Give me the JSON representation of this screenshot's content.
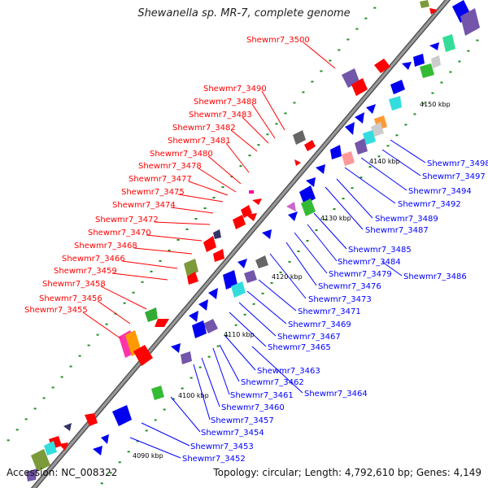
{
  "title": "Shewanella sp. MR-7, complete genome",
  "footer": {
    "accession": "Accession: NC_008322",
    "summary": "Topology: circular; Length: 4,792,610 bp; Genes: 4,149"
  },
  "colors": {
    "forward_label": "#ff0000",
    "reverse_label": "#0000ff",
    "backbone": "#8c8c8c"
  },
  "kbp_labels": [
    "4090 kbp",
    "4100 kbp",
    "4110 kbp",
    "4120 kbp",
    "4130 kbp",
    "4140 kbp",
    "4150 kbp"
  ],
  "forward_labels": [
    "Shewmr7_3500",
    "Shewmr7_3490",
    "Shewmr7_3488",
    "Shewmr7_3483",
    "Shewmr7_3482",
    "Shewmr7_3481",
    "Shewmr7_3480",
    "Shewmr7_3478",
    "Shewmr7_3477",
    "Shewmr7_3475",
    "Shewmr7_3474",
    "Shewmr7_3472",
    "Shewmr7_3470",
    "Shewmr7_3468",
    "Shewmr7_3466",
    "Shewmr7_3459",
    "Shewmr7_3458",
    "Shewmr7_3456",
    "Shewmr7_3455"
  ],
  "reverse_labels": [
    "Shewmr7_3498",
    "Shewmr7_3497",
    "Shewmr7_3494",
    "Shewmr7_3492",
    "Shewmr7_3489",
    "Shewmr7_3487",
    "Shewmr7_3485",
    "Shewmr7_3484",
    "Shewmr7_3486",
    "Shewmr7_3479",
    "Shewmr7_3476",
    "Shewmr7_3473",
    "Shewmr7_3471",
    "Shewmr7_3469",
    "Shewmr7_3467",
    "Shewmr7_3465",
    "Shewmr7_3463",
    "Shewmr7_3462",
    "Shewmr7_3464",
    "Shewmr7_3461",
    "Shewmr7_3460",
    "Shewmr7_3457",
    "Shewmr7_3454",
    "Shewmr7_3453",
    "Shewmr7_3452"
  ]
}
